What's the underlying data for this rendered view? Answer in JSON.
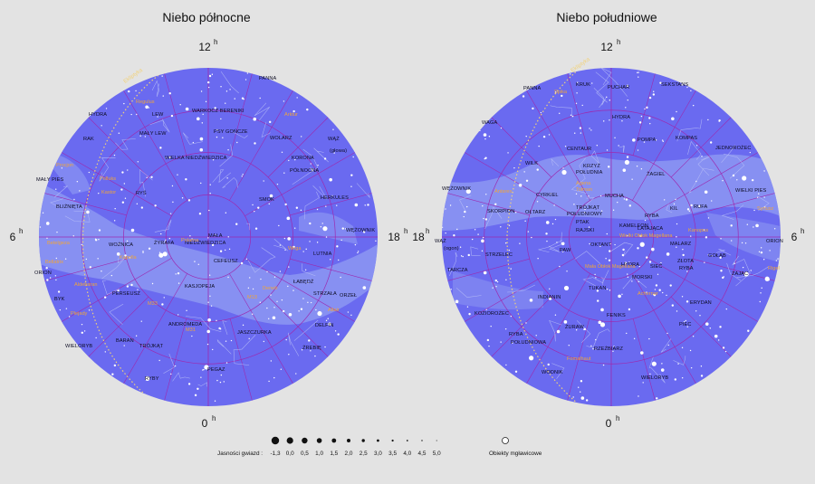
{
  "colors": {
    "sky": "#6a6af0",
    "milky_way": "#8c96f2",
    "grid": "#9c2bb0",
    "lines": "#b6bcf6",
    "star_names": "#f0a53a",
    "ecliptic": "#f2d27a",
    "background": "#e3e3e3"
  },
  "north": {
    "title": "Niebo północne",
    "hours": {
      "top": "12",
      "bottom": "0",
      "left": "6",
      "right": "18",
      "suffix": "h"
    },
    "ecliptic_label": "Ekliptyka",
    "constellations": [
      "PANNA",
      "WARKOCZ BERENIKI",
      "LEW",
      "HYDRA",
      "RAK",
      "MAŁY LEW",
      "PSY GOŃCZE",
      "WOLARZ",
      "WĄŻ",
      "(głowa)",
      "WIELKA NIEDŹWIEDZICA",
      "KORONA",
      "PÓŁNOCNA",
      "MAŁY PIES",
      "RYŚ",
      "SMOK",
      "HERKULES",
      "BLIŹNIĘTA",
      "MAŁA",
      "NIEDŹWIEDZICA",
      "WOŹNICA",
      "ŻYRAFA",
      "CEFEUSZ",
      "LUTNIA",
      "WĘŻOWNIK",
      "ORION",
      "PERSEUSZ",
      "KASJOPEJA",
      "ŁABĘDŹ",
      "STRZAŁA",
      "ORZEŁ",
      "BYK",
      "ANDROMEDA",
      "JASZCZURKA",
      "DELFIN",
      "BARAN",
      "TRÓJKĄT",
      "ŹREBIĘ",
      "WIELORYB",
      "PEGAZ",
      "RYBY"
    ],
    "star_names": [
      "Regulus",
      "Arktur",
      "Procjon",
      "Polluks",
      "Kastor",
      "Betelgeza",
      "Bellatrix",
      "Aldebaran",
      "Plejady",
      "Kapella",
      "Polarna",
      "Wega",
      "Deneb",
      "M31",
      "M33",
      "Altair",
      "M13"
    ]
  },
  "south": {
    "title": "Niebo południowe",
    "hours": {
      "top": "12",
      "bottom": "0",
      "left": "18",
      "right": "6",
      "suffix": "h"
    },
    "ecliptic_label": "Ekliptyka",
    "constellations": [
      "PANNA",
      "KRUK",
      "PUCHAR",
      "SEKSTANS",
      "WAGA",
      "HYDRA",
      "POMPA",
      "KOMPAS",
      "CENTAUR",
      "JEDNOROŻEC",
      "WILK",
      "KRZYŻ",
      "POŁUDNIA",
      "ŻAGIEL",
      "WĘŻOWNIK",
      "CYRKIEL",
      "MUCHA",
      "WIELKI PIES",
      "SKORPION",
      "OŁTARZ",
      "TRÓJKĄT",
      "POŁUDNIOWY",
      "KIL",
      "RUFA",
      "PTAK",
      "RAJSKI",
      "KAMELEON",
      "RYBA",
      "LATAJĄCA",
      "WĄŻ",
      "(ogon)",
      "PAW",
      "OKTANT",
      "MALARZ",
      "ORION",
      "STRZELEC",
      "HYDRA",
      "SIEĆ",
      "ZŁOTA",
      "RYBA",
      "GOŁĄB",
      "TARCZA",
      "ZAJĄC",
      "INDIANIN",
      "TUKAN",
      "MORSKI",
      "ERYDAN",
      "KOZIOROŻEC",
      "ŻURAW",
      "FENIKS",
      "PIEC",
      "RYBA",
      "POŁUDNIOWA",
      "RZEŹBIARZ",
      "WODNIK",
      "WIELORYB"
    ],
    "star_names": [
      "Spika",
      "Antares",
      "Agena",
      "Tolman",
      "Kanopus",
      "Syriusz",
      "Rigel",
      "Mała Obłok Magellana",
      "Wielki Obłok Magellana",
      "Achernar",
      "Fomalhaut"
    ]
  },
  "legend": {
    "magnitude_title": "Jasności gwiazd :",
    "magnitudes": [
      "-1,3",
      "0,0",
      "0,5",
      "1,0",
      "1,5",
      "2,0",
      "2,5",
      "3,0",
      "3,5",
      "4,0",
      "4,5",
      "5,0"
    ],
    "nebula_label": "Obiekty mgławicowe"
  }
}
